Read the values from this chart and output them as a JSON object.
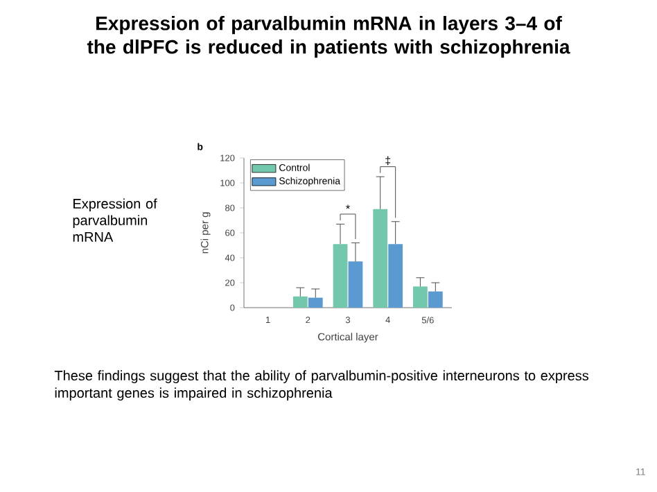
{
  "chart_data": {
    "type": "bar",
    "title": "Expression of parvalbumin mRNA in layers 3–4 of the dlPFC is reduced in patients with schizophrenia",
    "xlabel": "Cortical layer",
    "ylabel": "nCi per g",
    "categories": [
      "1",
      "2",
      "3",
      "4",
      "5/6"
    ],
    "series": [
      {
        "name": "Control",
        "color": "#72c7ad",
        "values": [
          0,
          9,
          51,
          79,
          17
        ],
        "errors": [
          null,
          [
            9,
            16
          ],
          [
            51,
            67
          ],
          [
            79,
            105
          ],
          [
            17,
            24
          ]
        ]
      },
      {
        "name": "Schizophrenia",
        "color": "#5a9ad0",
        "values": [
          0,
          8,
          37,
          51,
          13
        ],
        "errors": [
          null,
          [
            8,
            15
          ],
          [
            37,
            52
          ],
          [
            51,
            69
          ],
          [
            13,
            20
          ]
        ]
      }
    ],
    "ylim": [
      0,
      120
    ],
    "yticks": [
      0,
      20,
      40,
      60,
      80,
      100,
      120
    ],
    "grid": false,
    "legend": "top left",
    "annotations": [
      "b",
      "Expression of parvalbumin mRNA",
      "These findings suggest that the ability of parvalbumin-positive interneurons to express important genes is impaired in schizophrenia",
      "11",
      "*",
      {
        "text": "‡",
        "x": "4",
        "y": 105
      }
    ]
  }
}
